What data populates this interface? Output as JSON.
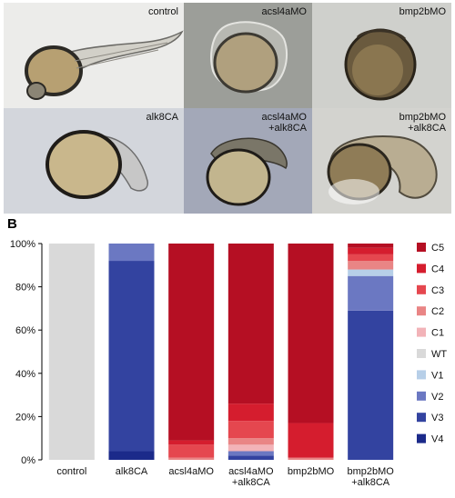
{
  "panels": {
    "a": "A",
    "b": "B"
  },
  "images": [
    {
      "label": "control",
      "bg": "#ececea"
    },
    {
      "label": "acsl4aMO",
      "bg": "#9c9e99"
    },
    {
      "label": "bmp2bMO",
      "bg": "#cfd0cc"
    },
    {
      "label": "alk8CA",
      "bg": "#d3d6dc"
    },
    {
      "label": "acsl4aMO\n+alk8CA",
      "bg": "#a3a8b8"
    },
    {
      "label": "bmp2bMO\n+alk8CA",
      "bg": "#d3d3cf"
    }
  ],
  "chart_data": {
    "type": "bar",
    "stacked": true,
    "categories": [
      "control",
      "alk8CA",
      "acsl4aMO",
      "acsl4aMO\n+alk8CA",
      "bmp2bMO",
      "bmp2bMO\n+alk8CA"
    ],
    "ylim": [
      0,
      100
    ],
    "yticks": [
      "0%",
      "20%",
      "40%",
      "60%",
      "80%",
      "100%"
    ],
    "grid": false,
    "legend_position": "right",
    "series": [
      {
        "name": "V4",
        "color": "#1b2a8a",
        "values": [
          0,
          4,
          0,
          0,
          0,
          0
        ]
      },
      {
        "name": "V3",
        "color": "#3343a0",
        "values": [
          0,
          88,
          0,
          2,
          0,
          69
        ]
      },
      {
        "name": "V2",
        "color": "#6b78c2",
        "values": [
          0,
          8,
          0,
          2,
          0,
          16
        ]
      },
      {
        "name": "V1",
        "color": "#b7cfe8",
        "values": [
          0,
          0,
          0,
          0,
          0,
          3
        ]
      },
      {
        "name": "WT",
        "color": "#d9d9d9",
        "values": [
          100,
          0,
          0,
          0,
          0,
          0
        ]
      },
      {
        "name": "C1",
        "color": "#f2b3b8",
        "values": [
          0,
          0,
          0,
          3,
          0,
          0
        ]
      },
      {
        "name": "C2",
        "color": "#e98585",
        "values": [
          0,
          0,
          1,
          3,
          1,
          4
        ]
      },
      {
        "name": "C3",
        "color": "#e5474f",
        "values": [
          0,
          0,
          6,
          8,
          0,
          3
        ]
      },
      {
        "name": "C4",
        "color": "#d51d2e",
        "values": [
          0,
          0,
          2,
          8,
          16,
          3
        ]
      },
      {
        "name": "C5",
        "color": "#b50f23",
        "values": [
          0,
          0,
          91,
          74,
          83,
          2
        ]
      }
    ]
  }
}
